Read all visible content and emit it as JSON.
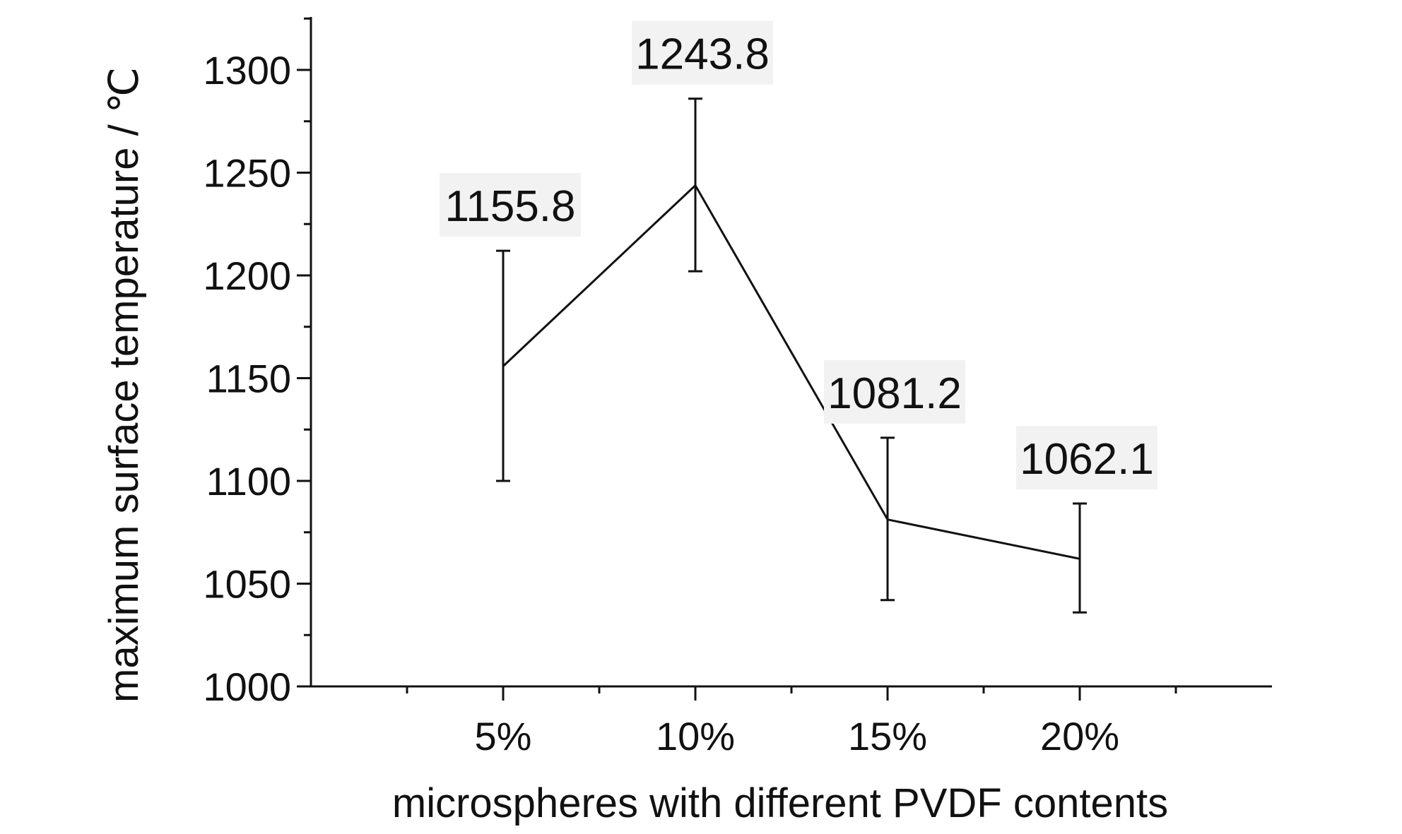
{
  "chart_data": {
    "type": "line",
    "title": "",
    "xlabel": "microspheres with different PVDF contents",
    "ylabel": "maximum surface temperature / ℃",
    "categories": [
      "5%",
      "10%",
      "15%",
      "20%"
    ],
    "series": [
      {
        "values": [
          1155.8,
          1243.8,
          1081.2,
          1062.1
        ],
        "error_low": [
          1100,
          1202,
          1042,
          1036
        ],
        "error_high": [
          1212,
          1286,
          1121,
          1089
        ]
      }
    ],
    "data_labels": [
      "1155.8",
      "1243.8",
      "1081.2",
      "1062.1"
    ],
    "ylim": [
      1000,
      1325
    ],
    "yticks": [
      1000,
      1050,
      1100,
      1150,
      1200,
      1250,
      1300
    ],
    "ytick_labels": [
      "1000",
      "1050",
      "1100",
      "1150",
      "1200",
      "1250",
      "1300"
    ],
    "grid": false,
    "legend": "none",
    "line_color": "#111111",
    "axis_color": "#111111",
    "label_background": "#f2f2f2"
  }
}
